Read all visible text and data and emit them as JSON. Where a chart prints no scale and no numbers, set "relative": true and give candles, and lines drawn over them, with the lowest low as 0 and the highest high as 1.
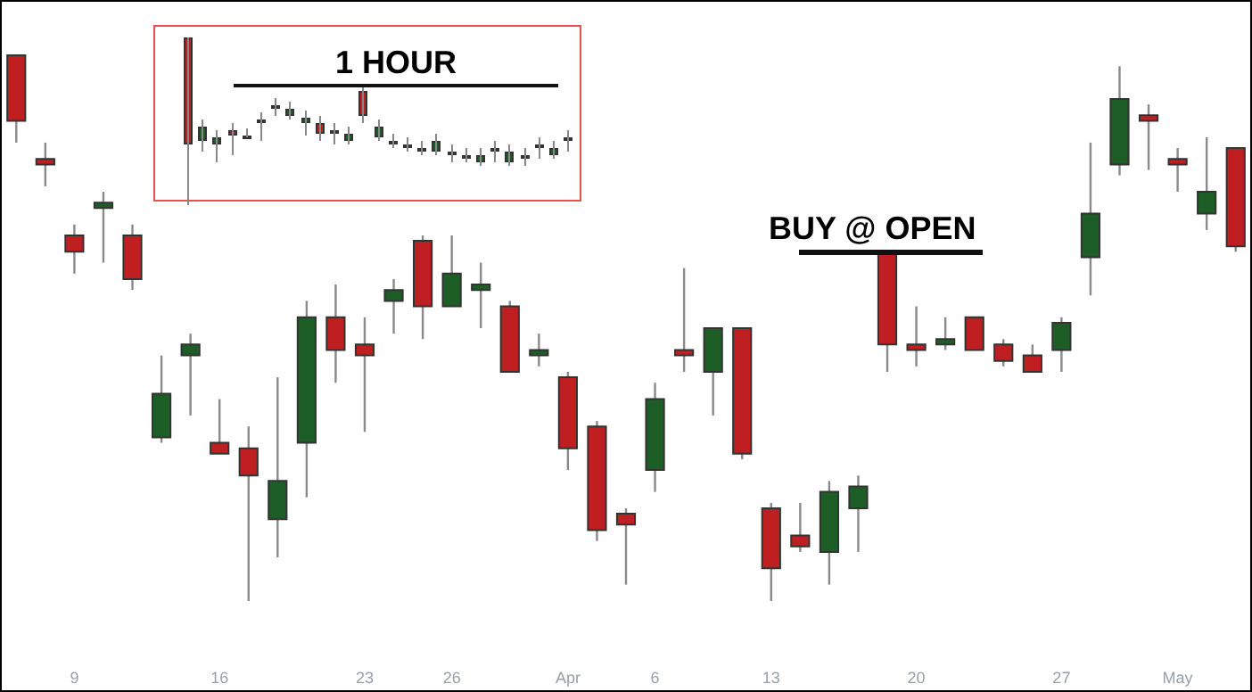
{
  "chart_data": {
    "type": "candlestick",
    "relative": true,
    "annotations": [
      "1 HOUR",
      "BUY @ OPEN"
    ],
    "categories": [
      null,
      null,
      "9",
      null,
      null,
      null,
      null,
      "16",
      null,
      null,
      null,
      null,
      "23",
      null,
      null,
      "26",
      null,
      null,
      null,
      "Apr",
      null,
      null,
      "6",
      null,
      null,
      null,
      "13",
      null,
      null,
      null,
      null,
      "20",
      null,
      null,
      null,
      null,
      "27",
      null,
      null,
      null,
      "May",
      null,
      null
    ],
    "ohlc": [
      [
        1.0,
        1.0,
        0.84,
        0.88
      ],
      [
        0.81,
        0.84,
        0.76,
        0.8
      ],
      [
        0.67,
        0.69,
        0.6,
        0.64
      ],
      [
        0.72,
        0.75,
        0.62,
        0.73
      ],
      [
        0.67,
        0.69,
        0.57,
        0.59
      ],
      [
        0.3,
        0.45,
        0.29,
        0.38
      ],
      [
        0.45,
        0.49,
        0.34,
        0.47
      ],
      [
        0.29,
        0.37,
        0.27,
        0.27
      ],
      [
        0.28,
        0.32,
        0.0,
        0.23
      ],
      [
        0.15,
        0.41,
        0.08,
        0.22
      ],
      [
        0.29,
        0.55,
        0.19,
        0.52
      ],
      [
        0.52,
        0.58,
        0.4,
        0.46
      ],
      [
        0.47,
        0.52,
        0.31,
        0.45
      ],
      [
        0.55,
        0.59,
        0.49,
        0.57
      ],
      [
        0.66,
        0.67,
        0.48,
        0.54
      ],
      [
        0.54,
        0.67,
        0.54,
        0.6
      ],
      [
        0.57,
        0.62,
        0.5,
        0.58
      ],
      [
        0.54,
        0.55,
        0.42,
        0.42
      ],
      [
        0.45,
        0.49,
        0.43,
        0.46
      ],
      [
        0.41,
        0.42,
        0.24,
        0.28
      ],
      [
        0.32,
        0.33,
        0.11,
        0.13
      ],
      [
        0.16,
        0.17,
        0.03,
        0.14
      ],
      [
        0.24,
        0.4,
        0.2,
        0.37
      ],
      [
        0.46,
        0.61,
        0.42,
        0.45
      ],
      [
        0.42,
        0.5,
        0.34,
        0.5
      ],
      [
        0.5,
        0.5,
        0.26,
        0.27
      ],
      [
        0.17,
        0.18,
        0.0,
        0.06
      ],
      [
        0.12,
        0.18,
        0.09,
        0.1
      ],
      [
        0.09,
        0.22,
        0.03,
        0.2
      ],
      [
        0.17,
        0.23,
        0.09,
        0.21
      ],
      [
        0.64,
        0.64,
        0.42,
        0.47
      ],
      [
        0.47,
        0.54,
        0.43,
        0.46
      ],
      [
        0.47,
        0.52,
        0.46,
        0.48
      ],
      [
        0.52,
        0.52,
        0.46,
        0.46
      ],
      [
        0.47,
        0.48,
        0.43,
        0.44
      ],
      [
        0.45,
        0.47,
        0.42,
        0.42
      ],
      [
        0.46,
        0.52,
        0.42,
        0.51
      ],
      [
        0.63,
        0.84,
        0.56,
        0.71
      ],
      [
        0.8,
        0.98,
        0.78,
        0.92
      ],
      [
        0.89,
        0.91,
        0.79,
        0.88
      ],
      [
        0.81,
        0.83,
        0.75,
        0.8
      ],
      [
        0.71,
        0.85,
        0.68,
        0.75
      ],
      [
        0.83,
        0.83,
        0.64,
        0.65
      ]
    ],
    "colors": [
      "#c01f22",
      "#c01f22",
      "#c01f22",
      "#1d5e27",
      "#c01f22",
      "#1d5e27",
      "#1d5e27",
      "#c01f22",
      "#c01f22",
      "#1d5e27",
      "#1d5e27",
      "#c01f22",
      "#c01f22",
      "#1d5e27",
      "#c01f22",
      "#1d5e27",
      "#1d5e27",
      "#c01f22",
      "#1d5e27",
      "#c01f22",
      "#c01f22",
      "#c01f22",
      "#1d5e27",
      "#c01f22",
      "#1d5e27",
      "#c01f22",
      "#c01f22",
      "#c01f22",
      "#1d5e27",
      "#1d5e27",
      "#c01f22",
      "#c01f22",
      "#1d5e27",
      "#c01f22",
      "#c01f22",
      "#c01f22",
      "#1d5e27",
      "#1d5e27",
      "#1d5e27",
      "#c01f22",
      "#c01f22",
      "#1d5e27",
      "#c01f22"
    ]
  }
}
